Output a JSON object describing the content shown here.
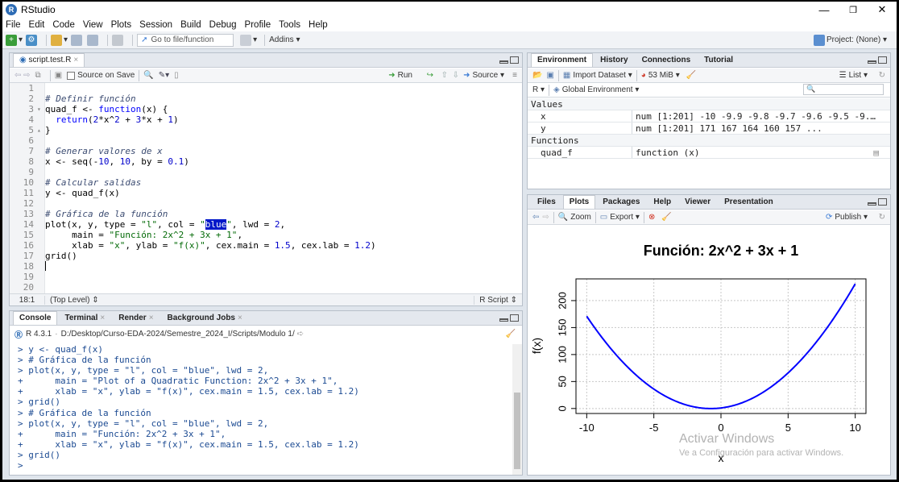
{
  "window": {
    "title": "RStudio",
    "controls": [
      "—",
      "❐",
      "✕"
    ]
  },
  "menu": [
    "File",
    "Edit",
    "Code",
    "View",
    "Plots",
    "Session",
    "Build",
    "Debug",
    "Profile",
    "Tools",
    "Help"
  ],
  "toolbar": {
    "goto_placeholder": "Go to file/function",
    "addins": "Addins",
    "project": "Project: (None)"
  },
  "editor": {
    "tab": "script.test.R",
    "save_on_save": "Source on Save",
    "run": "Run",
    "source": "Source",
    "status_pos": "18:1",
    "status_scope": "(Top Level)",
    "status_type": "R Script",
    "line_numbers": [
      "1",
      "2",
      "3",
      "4",
      "5",
      "6",
      "7",
      "8",
      "9",
      "10",
      "11",
      "12",
      "13",
      "14",
      "15",
      "16",
      "17",
      "18",
      "19",
      "20"
    ]
  },
  "console": {
    "tabs": [
      "Console",
      "Terminal",
      "Render",
      "Background Jobs"
    ],
    "version": "R 4.3.1",
    "path": "D:/Desktop/Curso-EDA-2024/Semestre_2024_I/Scripts/Modulo 1/",
    "lines": [
      "> y <- quad_f(x)",
      "> # Gráfica de la función",
      "> plot(x, y, type = \"l\", col = \"blue\", lwd = 2,",
      "+      main = \"Plot of a Quadratic Function: 2x^2 + 3x + 1\",",
      "+      xlab = \"x\", ylab = \"f(x)\", cex.main = 1.5, cex.lab = 1.2)",
      "> grid()",
      "> # Gráfica de la función",
      "> plot(x, y, type = \"l\", col = \"blue\", lwd = 2,",
      "+      main = \"Función: 2x^2 + 3x + 1\",",
      "+      xlab = \"x\", ylab = \"f(x)\", cex.main = 1.5, cex.lab = 1.2)",
      "> grid()",
      "> "
    ]
  },
  "environment": {
    "tabs": [
      "Environment",
      "History",
      "Connections",
      "Tutorial"
    ],
    "import": "Import Dataset",
    "memory": "53 MiB",
    "list": "List",
    "r_label": "R",
    "global": "Global Environment",
    "values_header": "Values",
    "functions_header": "Functions",
    "values": [
      {
        "name": "x",
        "value": "num [1:201] -10 -9.9 -9.8 -9.7 -9.6 -9.5 -9.…"
      },
      {
        "name": "y",
        "value": "num [1:201] 171 167 164 160 157 ..."
      }
    ],
    "functions": [
      {
        "name": "quad_f",
        "value": "function (x)"
      }
    ]
  },
  "files": {
    "tabs": [
      "Files",
      "Plots",
      "Packages",
      "Help",
      "Viewer",
      "Presentation"
    ],
    "zoom": "Zoom",
    "export": "Export",
    "publish": "Publish"
  },
  "watermark": {
    "line1": "Activar Windows",
    "line2": "Ve a Configuración para activar Windows."
  },
  "chart_data": {
    "type": "line",
    "title": "Función: 2x^2 + 3x + 1",
    "xlabel": "x",
    "ylabel": "f(x)",
    "function": "2x^2 + 3x + 1",
    "x_range": [
      -10,
      10
    ],
    "step": 0.1,
    "xlim": [
      -10,
      10
    ],
    "ylim": [
      0,
      231
    ],
    "x_ticks": [
      -10,
      -5,
      0,
      5,
      10
    ],
    "y_ticks": [
      0,
      50,
      100,
      150,
      200
    ],
    "color": "#0000ff",
    "grid": true
  }
}
